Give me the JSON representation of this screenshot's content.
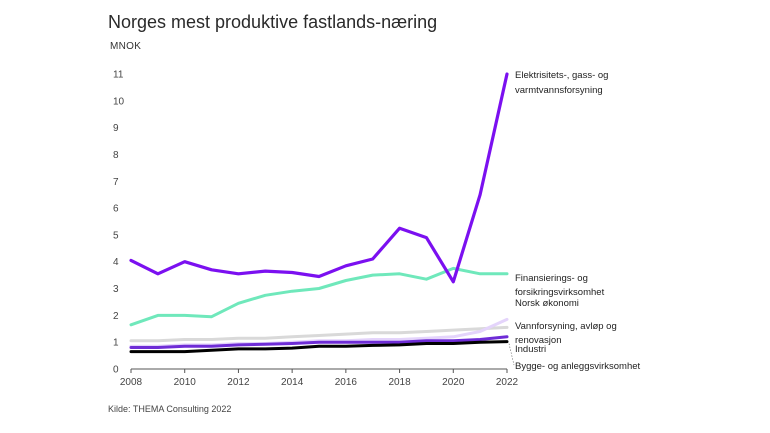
{
  "title": "Norges mest produktive fastlands-næring",
  "ylabel": "MNOK",
  "source": "Kilde: THEMA Consulting 2022",
  "colors": {
    "electricity": "#7b10f0",
    "finance": "#6fe8bb",
    "norway": "#d9d9d9",
    "water": "#e4d4fb",
    "industry": "#6e2cd6",
    "construction": "#000000",
    "axis": "#555555"
  },
  "chart_data": {
    "type": "line",
    "x": [
      2008,
      2009,
      2010,
      2011,
      2012,
      2013,
      2014,
      2015,
      2016,
      2017,
      2018,
      2019,
      2020,
      2021,
      2022
    ],
    "xticks": [
      2008,
      2010,
      2012,
      2014,
      2016,
      2018,
      2020,
      2022
    ],
    "yticks": [
      0,
      1,
      2,
      3,
      4,
      5,
      6,
      7,
      8,
      9,
      10,
      11
    ],
    "xlim": [
      2008,
      2022
    ],
    "ylim": [
      0,
      11
    ],
    "grid": false,
    "series": [
      {
        "key": "norway",
        "labels": [
          "Norsk økonomi"
        ],
        "values": [
          1.05,
          1.05,
          1.1,
          1.1,
          1.15,
          1.15,
          1.2,
          1.25,
          1.3,
          1.35,
          1.35,
          1.4,
          1.45,
          1.5,
          1.55
        ]
      },
      {
        "key": "water",
        "labels": [
          "Vannforsyning, avløp og",
          "renovasjon"
        ],
        "values": [
          0.85,
          0.85,
          0.9,
          0.9,
          0.95,
          0.95,
          1.0,
          1.05,
          1.05,
          1.1,
          1.1,
          1.15,
          1.2,
          1.4,
          1.85
        ]
      },
      {
        "key": "finance",
        "labels": [
          "Finansierings- og",
          "forsikringsvirksomhet"
        ],
        "values": [
          1.65,
          2.0,
          2.0,
          1.95,
          2.45,
          2.75,
          2.9,
          3.0,
          3.3,
          3.5,
          3.55,
          3.35,
          3.75,
          3.55,
          3.55
        ]
      },
      {
        "key": "industry",
        "labels": [
          "Industri"
        ],
        "values": [
          0.8,
          0.8,
          0.85,
          0.85,
          0.9,
          0.92,
          0.95,
          1.0,
          1.0,
          1.0,
          1.0,
          1.05,
          1.05,
          1.1,
          1.2
        ]
      },
      {
        "key": "construction",
        "labels": [
          "Bygge- og anleggsvirksomhet"
        ],
        "values": [
          0.65,
          0.65,
          0.65,
          0.7,
          0.75,
          0.75,
          0.78,
          0.85,
          0.85,
          0.88,
          0.9,
          0.95,
          0.95,
          1.0,
          1.02
        ]
      },
      {
        "key": "electricity",
        "labels": [
          "Elektrisitets-, gass- og",
          "varmtvannsforsyning"
        ],
        "values": [
          4.05,
          3.55,
          4.0,
          3.7,
          3.55,
          3.65,
          3.6,
          3.45,
          3.85,
          4.1,
          5.25,
          4.9,
          3.25,
          6.5,
          11.0
        ]
      }
    ]
  }
}
